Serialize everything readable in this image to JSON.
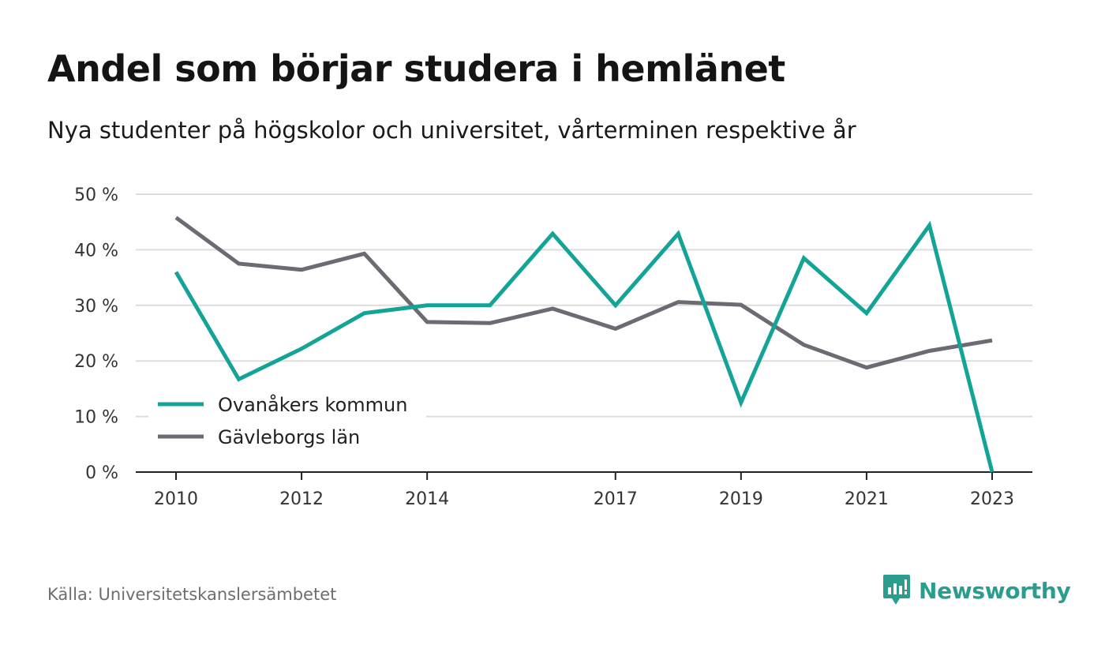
{
  "title": "Andel som börjar studera i hemlänet",
  "subtitle": "Nya studenter på högskolor och universitet, vårterminen respektive år",
  "source": "Källa: Universitetskanslersämbetet",
  "brand": "Newsworthy",
  "colors": {
    "series1": "#14a497",
    "series2": "#6c6b73",
    "brand": "#2a9d8f",
    "grid": "#dddddd"
  },
  "chart_data": {
    "type": "line",
    "x": [
      2010,
      2011,
      2012,
      2013,
      2014,
      2015,
      2016,
      2017,
      2018,
      2019,
      2020,
      2021,
      2022,
      2023
    ],
    "x_tick_labels": [
      "2010",
      "2012",
      "2014",
      "2017",
      "2019",
      "2021",
      "2023"
    ],
    "y_tick_labels": [
      "50 %",
      "40 %",
      "30 %",
      "20 %",
      "10 %",
      "0 %"
    ],
    "y_ticks": [
      50,
      40,
      30,
      20,
      10,
      0
    ],
    "ylim": [
      0,
      50
    ],
    "grid": true,
    "legend_position": "bottom-left",
    "series": [
      {
        "name": "Ovanåkers kommun",
        "values": [
          36,
          16.7,
          22.2,
          28.6,
          30,
          30,
          42.9,
          30,
          42.9,
          12.5,
          38.5,
          28.6,
          44.4,
          0
        ]
      },
      {
        "name": "Gävleborgs län",
        "values": [
          45.8,
          37.5,
          36.4,
          39.3,
          27,
          26.8,
          29.4,
          25.8,
          30.6,
          30.1,
          22.9,
          18.8,
          21.8,
          23.7
        ]
      }
    ]
  }
}
